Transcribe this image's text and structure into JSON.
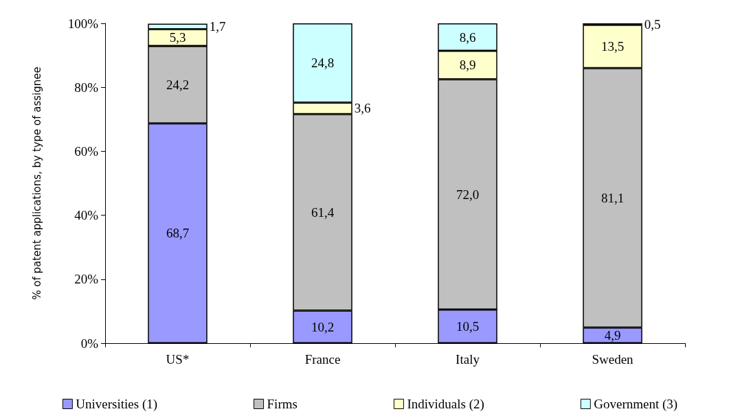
{
  "chart_data": {
    "type": "bar",
    "stacked": true,
    "ylabel": "% of patent applications, by type of assignee",
    "categories": [
      "US*",
      "France",
      "Italy",
      "Sweden"
    ],
    "series": [
      {
        "name": "Universities (1)",
        "color": "#9999ff",
        "values": [
          68.7,
          10.2,
          10.5,
          4.9
        ],
        "value_labels": [
          "68,7",
          "10,2",
          "10,5",
          "4,9"
        ]
      },
      {
        "name": "Firms",
        "color": "#c0c0c0",
        "values": [
          24.2,
          61.4,
          72.0,
          81.1
        ],
        "value_labels": [
          "24,2",
          "61,4",
          "72,0",
          "81,1"
        ]
      },
      {
        "name": "Individuals (2)",
        "color": "#ffffcc",
        "values": [
          5.3,
          3.6,
          8.9,
          13.5
        ],
        "value_labels": [
          "5,3",
          "3,6",
          "8,9",
          "13,5"
        ]
      },
      {
        "name": "Government (3)",
        "color": "#ccffff",
        "values": [
          1.7,
          24.8,
          8.6,
          0.5
        ],
        "value_labels": [
          "1,7",
          "24,8",
          "8,6",
          "0,5"
        ]
      }
    ],
    "ylim": [
      0,
      100
    ],
    "yticks": [
      {
        "value": 0,
        "label": "0%"
      },
      {
        "value": 20,
        "label": "20%"
      },
      {
        "value": 40,
        "label": "40%"
      },
      {
        "value": 60,
        "label": "60%"
      },
      {
        "value": 80,
        "label": "80%"
      },
      {
        "value": 100,
        "label": "100%"
      }
    ],
    "grid": false,
    "legend": "bottom"
  }
}
